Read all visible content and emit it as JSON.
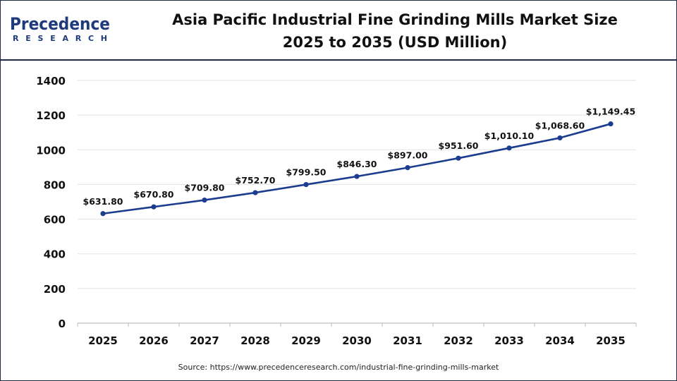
{
  "header": {
    "logo_main": "Precedence",
    "logo_sub": "RESEARCH",
    "title_line1": "Asia Pacific Industrial Fine Grinding Mills Market Size",
    "title_line2": "2025 to 2035 (USD Million)"
  },
  "source": "Source: https://www.precedenceresearch.com/industrial-fine-grinding-mills-market",
  "colors": {
    "line": "#1c3d8f",
    "border": "#1f2a44",
    "grid": "#e3e3e3"
  },
  "chart_data": {
    "type": "line",
    "title": "Asia Pacific Industrial Fine Grinding Mills Market Size 2025 to 2035 (USD Million)",
    "x": [
      "2025",
      "2026",
      "2027",
      "2028",
      "2029",
      "2030",
      "2031",
      "2032",
      "2033",
      "2034",
      "2035"
    ],
    "series": [
      {
        "values": [
          631.8,
          670.8,
          709.8,
          752.7,
          799.5,
          846.3,
          897.0,
          951.6,
          1010.1,
          1068.6,
          1149.45
        ],
        "labels": [
          "$631.80",
          "$670.80",
          "$709.80",
          "$752.70",
          "$799.50",
          "$846.30",
          "$897.00",
          "$951.60",
          "$1,010.10",
          "$1,068.60",
          "$1,149.45"
        ]
      }
    ],
    "ylim": [
      0,
      1400
    ],
    "yticks": [
      "0",
      "200",
      "400",
      "600",
      "800",
      "1000",
      "1200",
      "1400"
    ],
    "grid": true,
    "legend": "none"
  }
}
